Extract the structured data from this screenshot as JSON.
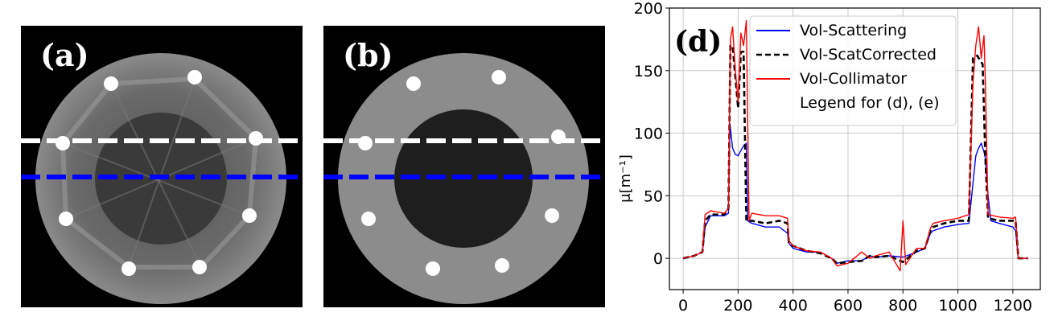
{
  "panels": [
    {
      "label": "(a)"
    },
    {
      "label": "(b)"
    }
  ],
  "colors": {
    "white_line": "#ffffff",
    "blue_line": "#0000ff"
  },
  "chart_data": {
    "type": "line",
    "panel_label": "(d)",
    "ylabel": "μ[m⁻¹]",
    "xlabel": "",
    "xlim": [
      -50,
      1300
    ],
    "ylim": [
      -25,
      200
    ],
    "xticks": [
      0,
      200,
      400,
      600,
      800,
      1000,
      1200
    ],
    "yticks": [
      0,
      50,
      100,
      150,
      200
    ],
    "grid": true,
    "legend_position": "top-right",
    "legend_note": "Legend for (d), (e)",
    "series": [
      {
        "name": "Vol-Scattering",
        "color": "#0000ff",
        "style": "solid",
        "x": [
          0,
          40,
          70,
          80,
          100,
          150,
          165,
          170,
          180,
          190,
          200,
          210,
          220,
          230,
          235,
          250,
          300,
          350,
          380,
          385,
          400,
          450,
          500,
          540,
          560,
          600,
          650,
          680,
          700,
          750,
          800,
          850,
          880,
          900,
          910,
          950,
          1000,
          1040,
          1055,
          1065,
          1075,
          1085,
          1095,
          1100,
          1110,
          1120,
          1150,
          1200,
          1210,
          1220,
          1240,
          1255
        ],
        "y": [
          0,
          2,
          5,
          25,
          34,
          34,
          36,
          108,
          88,
          83,
          82,
          86,
          90,
          92,
          30,
          28,
          25,
          25,
          20,
          12,
          8,
          5,
          5,
          0,
          -4,
          -2,
          -2,
          2,
          1,
          2,
          1,
          5,
          8,
          20,
          22,
          25,
          27,
          28,
          60,
          82,
          88,
          92,
          85,
          80,
          50,
          30,
          28,
          25,
          22,
          0,
          0,
          0
        ]
      },
      {
        "name": "Vol-ScatCorrected",
        "color": "#000000",
        "style": "dashed",
        "x": [
          0,
          40,
          70,
          80,
          100,
          150,
          165,
          172,
          180,
          200,
          210,
          220,
          230,
          240,
          250,
          300,
          350,
          380,
          385,
          400,
          450,
          500,
          540,
          560,
          600,
          650,
          680,
          700,
          750,
          800,
          850,
          880,
          900,
          910,
          950,
          1000,
          1040,
          1055,
          1070,
          1090,
          1100,
          1110,
          1150,
          1200,
          1210,
          1220,
          1240,
          1255
        ],
        "y": [
          0,
          2,
          5,
          30,
          35,
          35,
          40,
          170,
          170,
          120,
          165,
          165,
          30,
          30,
          30,
          28,
          30,
          28,
          12,
          10,
          6,
          4,
          0,
          -4,
          -3,
          -2,
          2,
          1,
          2,
          -3,
          6,
          8,
          22,
          25,
          28,
          30,
          30,
          160,
          162,
          155,
          80,
          32,
          30,
          30,
          30,
          0,
          0,
          0
        ]
      },
      {
        "name": "Vol-Collimator",
        "color": "#ff0000",
        "style": "solid",
        "x": [
          0,
          40,
          70,
          80,
          100,
          150,
          165,
          172,
          180,
          190,
          200,
          210,
          220,
          230,
          240,
          250,
          300,
          350,
          380,
          385,
          400,
          450,
          500,
          540,
          560,
          600,
          650,
          680,
          700,
          750,
          790,
          800,
          810,
          850,
          880,
          900,
          910,
          950,
          1000,
          1040,
          1055,
          1065,
          1075,
          1085,
          1095,
          1100,
          1110,
          1150,
          1200,
          1210,
          1220,
          1240,
          1255
        ],
        "y": [
          0,
          2,
          5,
          35,
          38,
          36,
          40,
          175,
          185,
          150,
          125,
          180,
          170,
          190,
          30,
          36,
          34,
          34,
          32,
          14,
          10,
          6,
          5,
          0,
          -6,
          -4,
          5,
          0,
          2,
          5,
          -10,
          30,
          -5,
          8,
          8,
          24,
          28,
          30,
          32,
          35,
          140,
          170,
          185,
          160,
          178,
          140,
          35,
          33,
          32,
          33,
          0,
          0,
          0
        ]
      }
    ]
  }
}
